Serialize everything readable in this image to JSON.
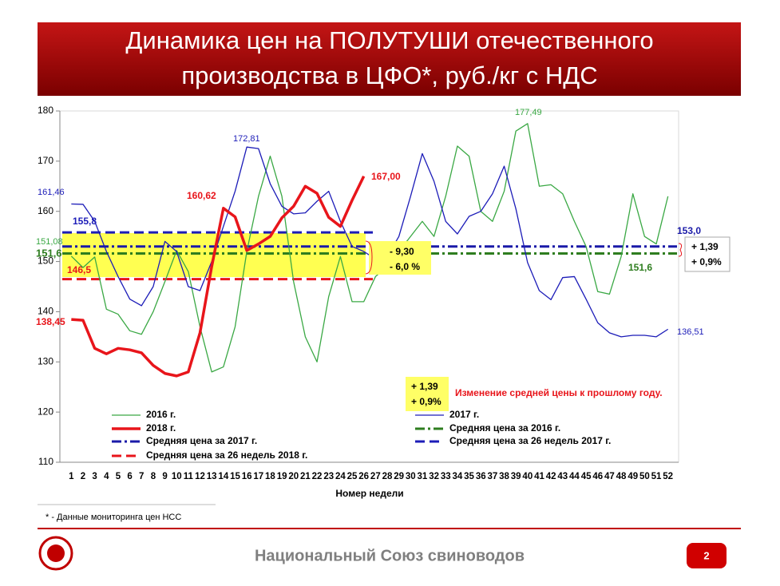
{
  "title": [
    "Динамика цен на ПОЛУТУШИ отечественного",
    "производства в ЦФО*, руб./кг с НДС"
  ],
  "chart_data": {
    "type": "line",
    "categories": [
      "1",
      "2",
      "3",
      "4",
      "5",
      "6",
      "7",
      "8",
      "9",
      "10",
      "11",
      "12",
      "13",
      "14",
      "15",
      "16",
      "17",
      "18",
      "19",
      "20",
      "21",
      "22",
      "23",
      "24",
      "25",
      "26",
      "27",
      "28",
      "29",
      "30",
      "31",
      "32",
      "33",
      "34",
      "35",
      "36",
      "37",
      "38",
      "39",
      "40",
      "41",
      "42",
      "43",
      "44",
      "45",
      "46",
      "47",
      "48",
      "49",
      "50",
      "51",
      "52"
    ],
    "xlabel": "Номер недели",
    "ylim": [
      110,
      180
    ],
    "yticks": [
      110,
      120,
      130,
      140,
      150,
      160,
      170,
      180
    ],
    "series": [
      {
        "name": "2016 г.",
        "color": "#3aa844",
        "width": 1.3,
        "values": [
          151.08,
          148.8,
          150.9,
          140.5,
          139.5,
          136.2,
          135.5,
          140,
          146,
          152.2,
          148,
          137,
          128,
          129,
          137,
          152,
          163,
          171,
          163,
          146,
          135,
          130,
          143,
          151,
          142,
          142,
          147,
          149,
          152,
          155,
          158,
          155,
          163,
          173,
          171,
          160,
          158,
          164,
          176,
          177.49,
          165,
          165.3,
          163.5,
          158,
          153,
          144,
          143.5,
          151,
          163.5,
          155,
          153.5,
          163
        ],
        "value_labels": [
          "151,08",
          null,
          null,
          null,
          null,
          null,
          null,
          null,
          null,
          null,
          null,
          null,
          null,
          null,
          null,
          null,
          null,
          null,
          null,
          null,
          null,
          null,
          null,
          null,
          null,
          null,
          null,
          null,
          null,
          null,
          null,
          null,
          null,
          null,
          null,
          null,
          null,
          null,
          null,
          "177,49",
          null,
          null,
          null,
          null,
          null,
          null,
          null,
          null,
          null,
          null,
          null,
          null
        ]
      },
      {
        "name": "2017 г.",
        "color": "#1c1cb8",
        "width": 1.3,
        "values": [
          161.46,
          161.4,
          158,
          152,
          147,
          142.5,
          141.2,
          145,
          154,
          152,
          145,
          144.2,
          150,
          157,
          164,
          172.81,
          172.5,
          165.5,
          161,
          159.5,
          159.7,
          162,
          164,
          158,
          153,
          152,
          150.5,
          151,
          155,
          163,
          171.5,
          166,
          158,
          155.5,
          159,
          160,
          163.5,
          169,
          160.5,
          149.8,
          144.2,
          142.4,
          146.8,
          147,
          142.5,
          137.8,
          135.8,
          135,
          135.3,
          135.3,
          135,
          136.51
        ],
        "value_labels": [
          "161,46",
          null,
          null,
          null,
          null,
          null,
          null,
          null,
          null,
          null,
          null,
          null,
          null,
          null,
          null,
          "172,81",
          null,
          null,
          null,
          null,
          null,
          null,
          null,
          null,
          null,
          null,
          null,
          null,
          null,
          null,
          null,
          null,
          null,
          null,
          null,
          null,
          null,
          null,
          null,
          null,
          null,
          null,
          null,
          null,
          null,
          null,
          null,
          null,
          null,
          null,
          null,
          "136,51"
        ]
      },
      {
        "name": "2018 г.",
        "color": "#e8151b",
        "width": 3.5,
        "values": [
          138.45,
          138.3,
          132.7,
          131.6,
          132.7,
          132.4,
          131.8,
          129.3,
          127.7,
          127.2,
          128,
          135.8,
          149,
          160.62,
          158.9,
          152.2,
          153.5,
          155,
          158.7,
          161,
          165,
          163.6,
          158.8,
          157,
          162.2,
          167.0,
          null,
          null,
          null,
          null,
          null,
          null,
          null,
          null,
          null,
          null,
          null,
          null,
          null,
          null,
          null,
          null,
          null,
          null,
          null,
          null,
          null,
          null,
          null,
          null,
          null,
          null
        ],
        "value_labels": [
          "138,45",
          null,
          null,
          null,
          null,
          null,
          null,
          null,
          null,
          null,
          null,
          null,
          null,
          "160,62",
          null,
          null,
          null,
          null,
          null,
          null,
          null,
          null,
          null,
          null,
          null,
          "167,00",
          null,
          null,
          null,
          null,
          null,
          null,
          null,
          null,
          null,
          null,
          null,
          null,
          null,
          null,
          null,
          null,
          null,
          null,
          null,
          null,
          null,
          null,
          null,
          null,
          null,
          null
        ]
      }
    ],
    "reference_lines": [
      {
        "name": "Средняя цена за 2016 г.",
        "color": "#2e7d1f",
        "dash": "12 4 3 4",
        "value": 151.6,
        "value_label": "151,6",
        "weeks": [
          1,
          52
        ]
      },
      {
        "name": "Средняя цена за 2017 г.",
        "color": "#1a1aa8",
        "dash": "12 4 3 4",
        "value": 153.0,
        "value_label": "153,0",
        "weeks": [
          1,
          52
        ]
      },
      {
        "name": "Средняя цена за 26 недель 2017 г.",
        "color": "#1c1cb8",
        "dash": "12 6",
        "value": 155.8,
        "value_label": "155,8",
        "weeks": [
          1,
          26
        ]
      },
      {
        "name": "Средняя цена за 26 недель 2018 г.",
        "color": "#e8151b",
        "dash": "12 6",
        "value": 146.5,
        "value_label": "146,5",
        "weeks": [
          1,
          26
        ]
      }
    ],
    "annotations": {
      "diff_26": [
        "- 9,30",
        "- 6,0 %"
      ],
      "diff_year_right": [
        "+ 1,39",
        "+ 0,9%"
      ],
      "diff_year_mid": [
        "+ 1,39",
        "+ 0,9%"
      ],
      "note": "Изменение средней цены к прошлому году."
    }
  },
  "footnote": "* - Данные мониторинга цен НСС",
  "footer": "Национальный Союз свиноводов",
  "page_number": "2"
}
